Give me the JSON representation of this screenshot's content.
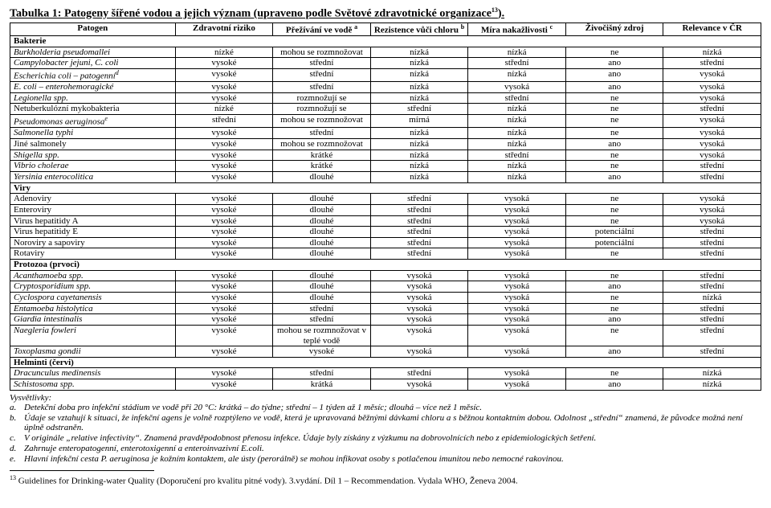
{
  "title": "Tabulka 1: Patogeny šířené vodou a jejich význam (upraveno podle Světové zdravotnické organizace",
  "title_sup": "13",
  "title_end": ").",
  "headers": [
    "Patogen",
    "Zdravotní riziko",
    "Přežívání ve vodě ",
    "Rezistence vůči chloru ",
    "Míra nakažlivosti ",
    "Živočišný zdroj",
    "Relevance v ČR"
  ],
  "header_sup": [
    "",
    "",
    "a",
    "b",
    "c",
    "",
    ""
  ],
  "sections": [
    {
      "label": "Bakterie",
      "rows": [
        {
          "name": "Burkholderia pseudomallei",
          "sup": "",
          "italic": true,
          "v": [
            "nízké",
            "mohou se rozmnožovat",
            "nízká",
            "nízká",
            "ne",
            "nízká"
          ]
        },
        {
          "name": "Campylobacter jejuni, C. coli",
          "sup": "",
          "italic": true,
          "v": [
            "vysoké",
            "střední",
            "nízká",
            "střední",
            "ano",
            "střední"
          ]
        },
        {
          "name": "Escherichia coli – patogenní",
          "sup": "d",
          "italic": true,
          "v": [
            "vysoké",
            "střední",
            "nízká",
            "nízká",
            "ano",
            "vysoká"
          ]
        },
        {
          "name": "E. coli – enterohemoragické",
          "sup": "",
          "italic": true,
          "v": [
            "vysoké",
            "střední",
            "nízká",
            "vysoká",
            "ano",
            "vysoká"
          ]
        },
        {
          "name": "Legionella spp.",
          "sup": "",
          "italic": true,
          "v": [
            "vysoké",
            "rozmnožují se",
            "nízká",
            "střední",
            "ne",
            "vysoká"
          ]
        },
        {
          "name": "Netuberkulózní mykobakteria",
          "sup": "",
          "italic": false,
          "v": [
            "nízké",
            "rozmnožují se",
            "střední",
            "nízká",
            "ne",
            "střední"
          ]
        },
        {
          "name": "Pseudomonas aeruginosa",
          "sup": "e",
          "italic": true,
          "v": [
            "střední",
            "mohou se rozmnožovat",
            "mírná",
            "nízká",
            "ne",
            "vysoká"
          ]
        },
        {
          "name": "Salmonella typhi",
          "sup": "",
          "italic": true,
          "v": [
            "vysoké",
            "střední",
            "nízká",
            "nízká",
            "ne",
            "vysoká"
          ]
        },
        {
          "name": "Jiné salmonely",
          "sup": "",
          "italic": false,
          "v": [
            "vysoké",
            "mohou se rozmnožovat",
            "nízká",
            "nízká",
            "ano",
            "vysoká"
          ]
        },
        {
          "name": "Shigella spp.",
          "sup": "",
          "italic": true,
          "v": [
            "vysoké",
            "krátké",
            "nízká",
            "střední",
            "ne",
            "vysoká"
          ]
        },
        {
          "name": "Vibrio cholerae",
          "sup": "",
          "italic": true,
          "v": [
            "vysoké",
            "krátké",
            "nízká",
            "nízká",
            "ne",
            "střední"
          ]
        },
        {
          "name": "Yersinia enterocolitica",
          "sup": "",
          "italic": true,
          "v": [
            "vysoké",
            "dlouhé",
            "nízká",
            "nízká",
            "ano",
            "střední"
          ]
        }
      ]
    },
    {
      "label": "Viry",
      "rows": [
        {
          "name": "Adenoviry",
          "sup": "",
          "italic": false,
          "v": [
            "vysoké",
            "dlouhé",
            "střední",
            "vysoká",
            "ne",
            "vysoká"
          ]
        },
        {
          "name": "Enteroviry",
          "sup": "",
          "italic": false,
          "v": [
            "vysoké",
            "dlouhé",
            "střední",
            "vysoká",
            "ne",
            "vysoká"
          ]
        },
        {
          "name": "Virus hepatitidy A",
          "sup": "",
          "italic": false,
          "v": [
            "vysoké",
            "dlouhé",
            "střední",
            "vysoká",
            "ne",
            "vysoká"
          ]
        },
        {
          "name": "Virus hepatitidy E",
          "sup": "",
          "italic": false,
          "v": [
            "vysoké",
            "dlouhé",
            "střední",
            "vysoká",
            "potenciální",
            "střední"
          ]
        },
        {
          "name": "Noroviry a sapoviry",
          "sup": "",
          "italic": false,
          "v": [
            "vysoké",
            "dlouhé",
            "střední",
            "vysoká",
            "potenciální",
            "střední"
          ]
        },
        {
          "name": "Rotaviry",
          "sup": "",
          "italic": false,
          "v": [
            "vysoké",
            "dlouhé",
            "střední",
            "vysoká",
            "ne",
            "střední"
          ]
        }
      ]
    },
    {
      "label": "Protozoa (prvoci)",
      "rows": [
        {
          "name": "Acanthamoeba spp.",
          "sup": "",
          "italic": true,
          "v": [
            "vysoké",
            "dlouhé",
            "vysoká",
            "vysoká",
            "ne",
            "střední"
          ]
        },
        {
          "name": "Cryptosporidium spp.",
          "sup": "",
          "italic": true,
          "v": [
            "vysoké",
            "dlouhé",
            "vysoká",
            "vysoká",
            "ano",
            "střední"
          ]
        },
        {
          "name": "Cyclospora cayetanensis",
          "sup": "",
          "italic": true,
          "v": [
            "vysoké",
            "dlouhé",
            "vysoká",
            "vysoká",
            "ne",
            "nízká"
          ]
        },
        {
          "name": "Entamoeba histolytica",
          "sup": "",
          "italic": true,
          "v": [
            "vysoké",
            "střední",
            "vysoká",
            "vysoká",
            "ne",
            "střední"
          ]
        },
        {
          "name": "Giardia intestinalis",
          "sup": "",
          "italic": true,
          "v": [
            "vysoké",
            "střední",
            "vysoká",
            "vysoká",
            "ano",
            "střední"
          ]
        },
        {
          "name": "Naegleria fowleri",
          "sup": "",
          "italic": true,
          "v": [
            "vysoké",
            "mohou se rozmnožovat v teplé vodě",
            "vysoká",
            "vysoká",
            "ne",
            "střední"
          ]
        },
        {
          "name": "Toxoplasma gondii",
          "sup": "",
          "italic": true,
          "v": [
            "vysoké",
            "vysoké",
            "vysoká",
            "vysoká",
            "ano",
            "střední"
          ]
        }
      ]
    },
    {
      "label": "Helminti (červi)",
      "rows": [
        {
          "name": "Dracunculus medinensis",
          "sup": "",
          "italic": true,
          "v": [
            "vysoké",
            "střední",
            "střední",
            "vysoká",
            "ne",
            "nízká"
          ]
        },
        {
          "name": "Schistosoma spp.",
          "sup": "",
          "italic": true,
          "v": [
            "vysoké",
            "krátká",
            "vysoká",
            "vysoká",
            "ano",
            "nízká"
          ]
        }
      ]
    }
  ],
  "notes_label": "Vysvětlivky:",
  "notes": [
    {
      "k": "a.",
      "t": "Detekční doba pro infekční stádium ve vodě při 20 °C: krátká – do týdne; střední – 1 týden až 1 měsíc; dlouhá – více než 1 měsíc."
    },
    {
      "k": "b.",
      "t": "Údaje se vztahují k situaci, že infekční agens je volně rozptýleno ve vodě, která je upravovaná běžnými dávkami chloru a s běžnou kontaktním dobou. Odolnost „střední“ znamená, že původce možná není úplně odstraněn."
    },
    {
      "k": "c.",
      "t": "V originále „relative infectivity“. Znamená pravděpodobnost přenosu infekce. Údaje byly získány z výzkumu na dobrovolnících nebo z epidemiologických šetření."
    },
    {
      "k": "d.",
      "t": "Zahrnuje enteropatogenní, enterotoxigenní a enteroinvazivní E.coli."
    },
    {
      "k": "e.",
      "t": "Hlavní infekční cesta P. aeruginosa je kožním kontaktem, ale ústy (perorálně) se mohou infikovat osoby s potlačenou imunitou nebo nemocné rakovinou."
    }
  ],
  "footnote_sup": "13",
  "footnote": " Guidelines for Drinking-water Quality (Doporučení pro kvalitu pitné vody). 3.vydání. Díl 1 – Recommendation. Vydala WHO, Ženeva 2004."
}
